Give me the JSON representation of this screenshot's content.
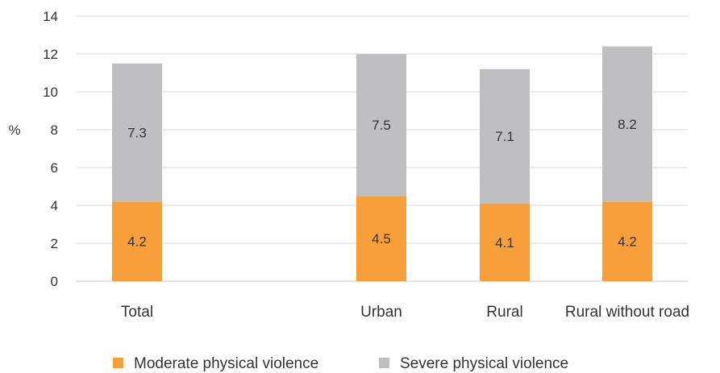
{
  "chart_data": {
    "type": "bar",
    "stacked": true,
    "categories": [
      "Total",
      "",
      "Urban",
      "Rural",
      "Rural without road"
    ],
    "series": [
      {
        "name": "Moderate physical violence",
        "color": "#f7a03b",
        "values": [
          4.2,
          null,
          4.5,
          4.1,
          4.2
        ]
      },
      {
        "name": "Severe physical violence",
        "color": "#bfbfc1",
        "values": [
          7.3,
          null,
          7.5,
          7.1,
          8.2
        ]
      }
    ],
    "title": "",
    "xlabel": "",
    "ylabel": "%",
    "ylim": [
      0,
      14
    ],
    "yticks": [
      0,
      2,
      4,
      6,
      8,
      10,
      12,
      14
    ],
    "grid": true,
    "legend": "bottom"
  }
}
